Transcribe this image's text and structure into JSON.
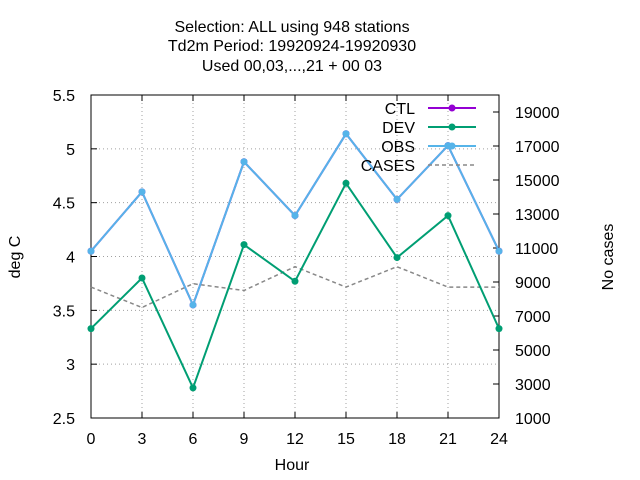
{
  "chart_data": {
    "type": "line",
    "title_lines": [
      "Selection: ALL using   948 stations",
      "Td2m   Period: 19920924-19920930",
      "Used  00,03,...,21  + 00 03"
    ],
    "xlabel": "Hour",
    "ylabel": "deg C",
    "y2label": "No cases",
    "x": [
      0,
      3,
      6,
      9,
      12,
      15,
      18,
      21,
      24
    ],
    "xlim": [
      0,
      24
    ],
    "ylim": [
      2.5,
      5.5
    ],
    "y2lim": [
      1000,
      20000
    ],
    "xticks": [
      "0",
      "3",
      "6",
      "9",
      "12",
      "15",
      "18",
      "21",
      "24"
    ],
    "yticks": [
      "2.5",
      "3",
      "3.5",
      "4",
      "4.5",
      "5",
      "5.5"
    ],
    "y2ticks": [
      "1000",
      "3000",
      "5000",
      "7000",
      "9000",
      "11000",
      "13000",
      "15000",
      "17000",
      "19000"
    ],
    "grid": true,
    "legend_position": "top-right",
    "series": [
      {
        "name": "CTL",
        "axis": "y",
        "color": "#9400d3",
        "style": "line-points",
        "values": [
          4.05,
          4.6,
          3.55,
          4.88,
          4.38,
          5.14,
          4.53,
          5.03,
          4.05
        ]
      },
      {
        "name": "DEV",
        "axis": "y",
        "color": "#009e73",
        "style": "line-points",
        "values": [
          3.33,
          3.8,
          2.78,
          4.11,
          3.77,
          4.68,
          3.99,
          4.38,
          3.33
        ]
      },
      {
        "name": "OBS",
        "axis": "y",
        "color": "#56b4e9",
        "style": "line-points",
        "values": [
          4.05,
          4.6,
          3.55,
          4.88,
          4.38,
          5.14,
          4.53,
          5.03,
          4.05
        ]
      },
      {
        "name": "CASES",
        "axis": "y2",
        "color": "#888888",
        "style": "dashed",
        "values": [
          8700,
          7500,
          8900,
          8500,
          9900,
          8700,
          9900,
          8700,
          8700
        ]
      }
    ]
  }
}
